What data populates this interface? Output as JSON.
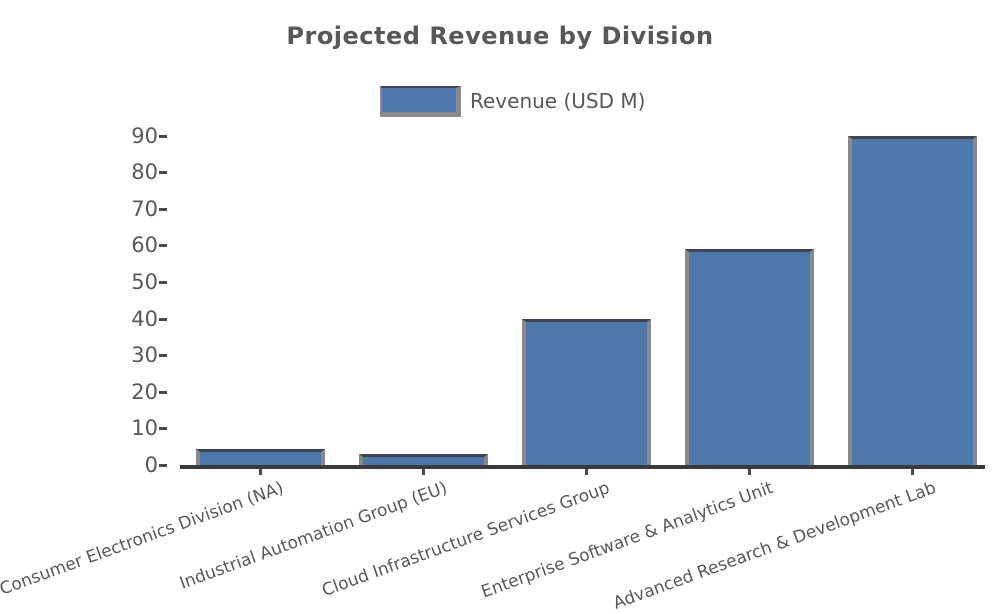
{
  "chart_data": {
    "type": "bar",
    "title": "Projected Revenue by Division",
    "legend": [
      {
        "label": "Revenue (USD M)",
        "color": "#4d78ab"
      }
    ],
    "legend_position": "upper center",
    "categories": [
      "Consumer Electronics Division (NA)",
      "Industrial Automation Group (EU)",
      "Cloud Infrastructure Services Group",
      "Enterprise Software & Analytics Unit",
      "Advanced Research & Development Lab"
    ],
    "values": [
      4.5,
      3,
      40,
      59,
      90
    ],
    "xlabel": "",
    "ylabel": "",
    "ylim": [
      0,
      95
    ],
    "yticks": [
      0,
      10,
      20,
      30,
      40,
      50,
      60,
      70,
      80,
      90
    ],
    "grid": false,
    "bar_color": "#4d78ab",
    "bar_edge_color": "#8a8a8a",
    "axis_color": "#3a3a3a",
    "text_color": "#58585a",
    "xtick_rotation_deg": 20
  }
}
